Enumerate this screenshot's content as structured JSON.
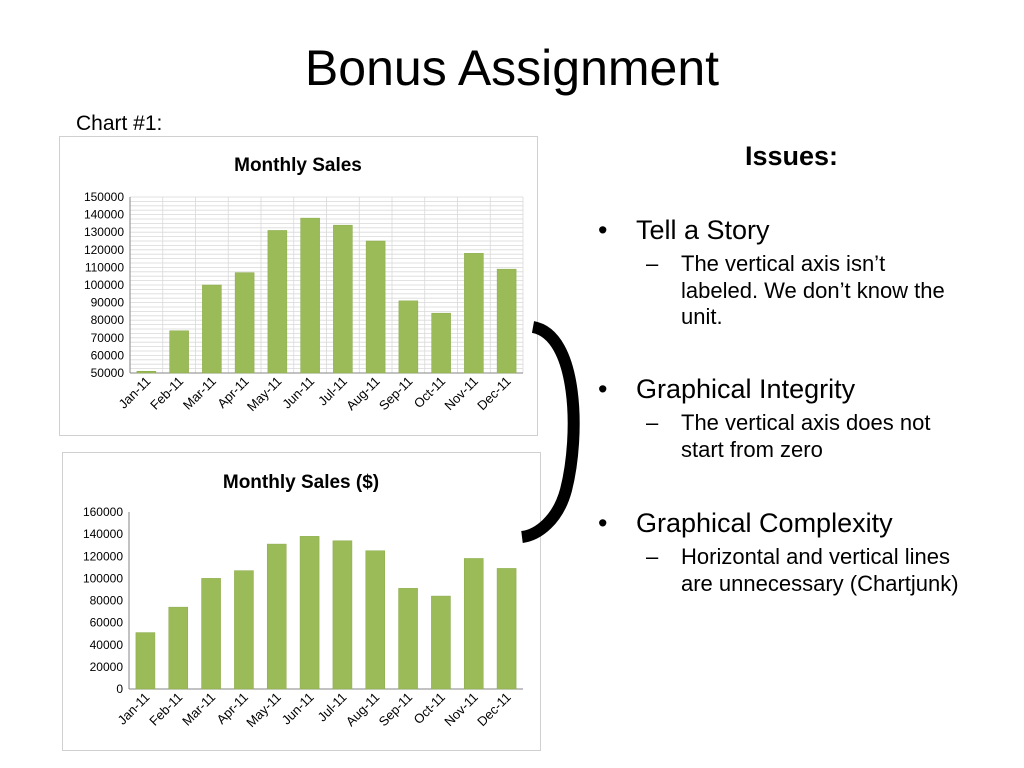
{
  "slide": {
    "title": "Bonus Assignment",
    "chart_label": "Chart #1:",
    "issues_heading": "Issues:",
    "issues": [
      {
        "bullet": "Tell a Story",
        "detail": "The vertical axis isn’t labeled. We don’t know the unit."
      },
      {
        "bullet": "Graphical Integrity",
        "detail": "The vertical axis does not start from zero"
      },
      {
        "bullet": "Graphical Complexity",
        "detail": "Horizontal and vertical lines are unnecessary (Chartjunk)"
      }
    ],
    "bullet_glyph": "•",
    "dash_glyph": "–"
  },
  "colors": {
    "bar": "#9bbb59",
    "bar_stroke": "#8aaa4a",
    "grid": "#d9d9d9",
    "axis": "#868686",
    "bracket": "#000000"
  },
  "chart_data": [
    {
      "type": "bar",
      "title": "Monthly Sales",
      "categories": [
        "Jan-11",
        "Feb-11",
        "Mar-11",
        "Apr-11",
        "May-11",
        "Jun-11",
        "Jul-11",
        "Aug-11",
        "Sep-11",
        "Oct-11",
        "Nov-11",
        "Dec-11"
      ],
      "values": [
        51000,
        74000,
        100000,
        107000,
        131000,
        138000,
        134000,
        125000,
        91000,
        84000,
        118000,
        109000
      ],
      "ylim": [
        50000,
        150000
      ],
      "yticks": [
        "50000",
        "60000",
        "70000",
        "80000",
        "90000",
        "100000",
        "110000",
        "120000",
        "130000",
        "140000",
        "150000"
      ],
      "grid": "dense horizontal and vertical gridlines",
      "xlabel": "",
      "ylabel": ""
    },
    {
      "type": "bar",
      "title": "Monthly Sales ($)",
      "categories": [
        "Jan-11",
        "Feb-11",
        "Mar-11",
        "Apr-11",
        "May-11",
        "Jun-11",
        "Jul-11",
        "Aug-11",
        "Sep-11",
        "Oct-11",
        "Nov-11",
        "Dec-11"
      ],
      "values": [
        51000,
        74000,
        100000,
        107000,
        131000,
        138000,
        134000,
        125000,
        91000,
        84000,
        118000,
        109000
      ],
      "ylim": [
        0,
        160000
      ],
      "yticks": [
        "0",
        "20000",
        "40000",
        "60000",
        "80000",
        "100000",
        "120000",
        "140000",
        "160000"
      ],
      "grid": "none",
      "xlabel": "",
      "ylabel": ""
    }
  ]
}
